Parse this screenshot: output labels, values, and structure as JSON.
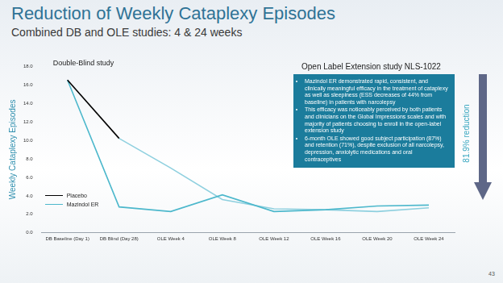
{
  "chart_data": {
    "type": "line",
    "title": "Reduction of Weekly Cataplexy Episodes",
    "subtitle": "Combined DB and OLE studies: 4 & 24 weeks",
    "y_label": "Weekly Cataplexy Episodes",
    "categories": [
      "DB Baseline (Day 1)",
      "DB Blind (Day 28)",
      "OLE Week 4",
      "OLE Week 8",
      "OLE Week 12",
      "OLE Week 16",
      "OLE Week 20",
      "OLE Week 24"
    ],
    "series": [
      {
        "name": "Placebo",
        "color": "#000000",
        "marker": "none",
        "values": [
          16.5,
          10.2,
          null,
          null,
          null,
          null,
          null,
          null
        ]
      },
      {
        "name": "Mazindol ER",
        "color": "#4db8cc",
        "marker": "none",
        "values": [
          16.5,
          2.8,
          2.3,
          4.1,
          2.3,
          2.5,
          2.9,
          3.0
        ]
      },
      {
        "color": "#8fd0df",
        "marker": "none",
        "values": [
          null,
          10.2,
          7.0,
          3.6,
          2.6,
          2.5,
          2.3,
          2.7
        ]
      }
    ],
    "ylim": [
      0,
      18
    ],
    "yticks": [
      {
        "value": 0,
        "label": "0.0"
      },
      {
        "value": 2,
        "label": "2.0"
      },
      {
        "value": 4,
        "label": "4.0"
      },
      {
        "value": 6,
        "label": "6.0"
      },
      {
        "value": 8,
        "label": "8.0"
      },
      {
        "value": 10,
        "label": "10.0"
      },
      {
        "value": 12,
        "label": "12.0"
      },
      {
        "value": 14,
        "label": "14.0"
      },
      {
        "value": 16,
        "label": "16.0"
      },
      {
        "value": 18,
        "label": "18.0"
      }
    ],
    "grid": false,
    "legend": "lower left",
    "annotations": {
      "double_blind": "Double-Blind study",
      "open_label": "Open Label Extension study NLS-1022",
      "bullets": [
        "Mazindol ER demonstrated rapid, consistent, and clinically meaningful efficacy in the treatment of cataplexy as well as sleepiness (ESS decreases of 44% from baseline) in patients with narcolepsy",
        "This efficacy was noticeably perceived by both patients and clinicians on the Global Impressions scales and with majority of patients choosing to enroll in the open-label extension study",
        "6-month OLE showed good subject participation (87%) and retention (71%), despite exclusion of all narcolepsy, depression, anxiolytic medications and oral contraceptives"
      ],
      "reduction": "81.9% reduction"
    },
    "page_number": "43"
  }
}
